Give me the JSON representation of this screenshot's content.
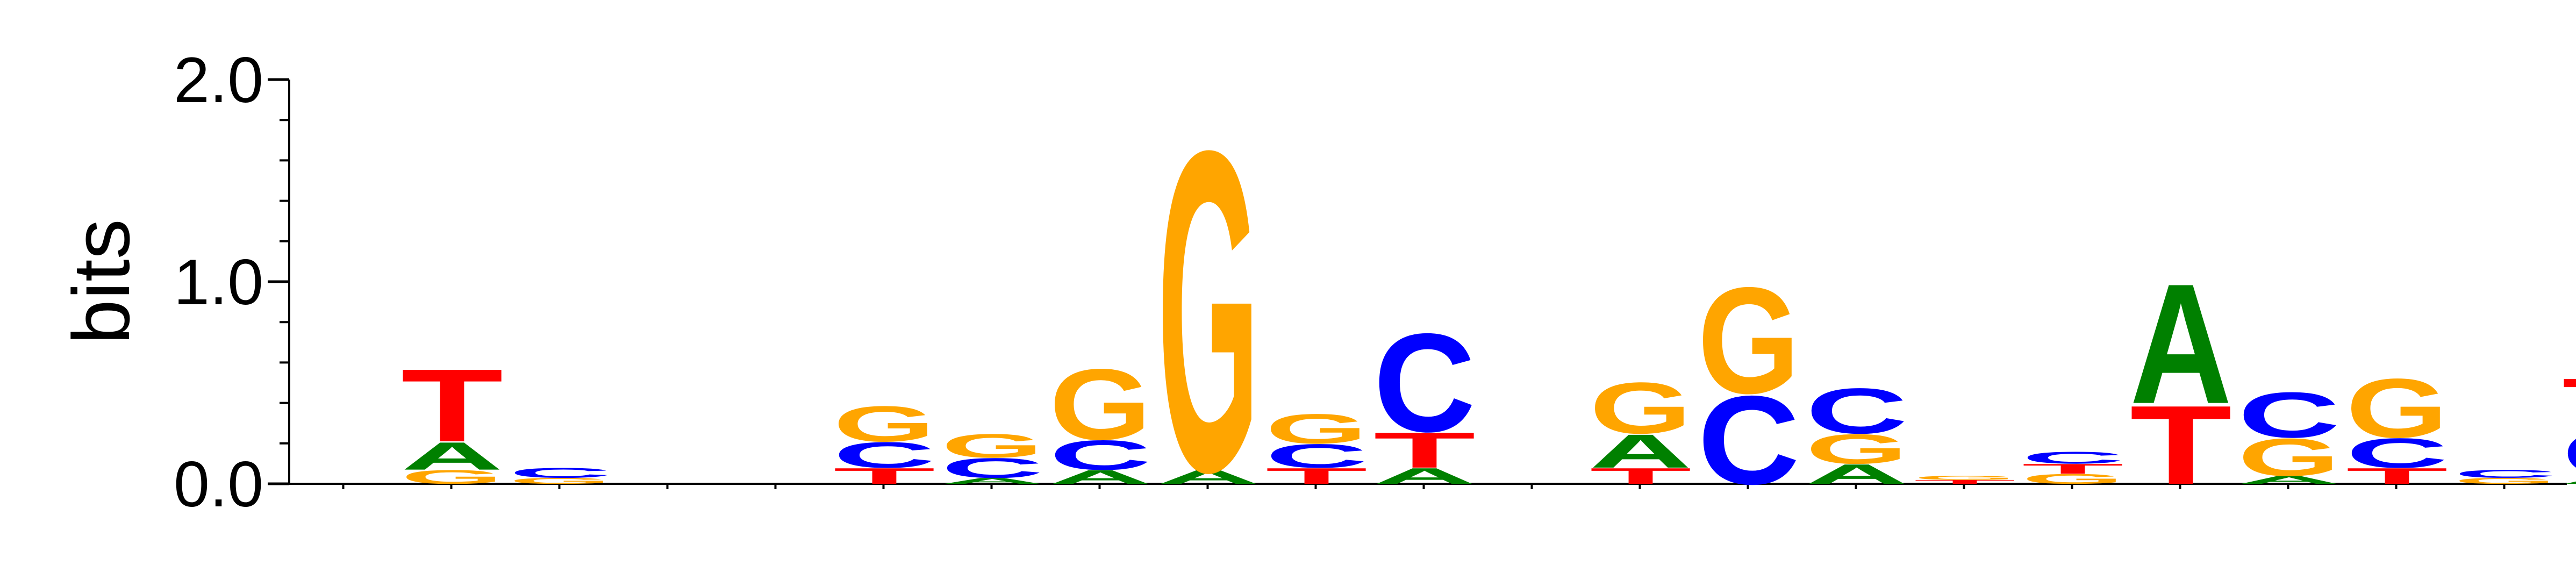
{
  "chart_data": {
    "type": "sequence-logo",
    "title": "",
    "xlabel": "",
    "ylabel": "bits",
    "ylim": [
      0,
      2.0
    ],
    "y_ticks": [
      0.0,
      1.0,
      2.0
    ],
    "y_tick_labels": [
      "0.0",
      "1.0",
      "2.0"
    ],
    "y_minor_step": 0.2,
    "x_tick_count": 21,
    "colors": {
      "A": "#008000",
      "C": "#0000ff",
      "G": "#ffa500",
      "T": "#ff0000"
    },
    "positions": [
      {
        "pos": 1,
        "letters": []
      },
      {
        "pos": 2,
        "letters": [
          [
            "G",
            0.07
          ],
          [
            "A",
            0.14
          ],
          [
            "T",
            0.37
          ]
        ]
      },
      {
        "pos": 3,
        "letters": [
          [
            "G",
            0.03
          ],
          [
            "C",
            0.05
          ]
        ]
      },
      {
        "pos": 4,
        "letters": []
      },
      {
        "pos": 5,
        "letters": []
      },
      {
        "pos": 6,
        "letters": [
          [
            "T",
            0.08
          ],
          [
            "C",
            0.13
          ],
          [
            "G",
            0.18
          ]
        ]
      },
      {
        "pos": 7,
        "letters": [
          [
            "A",
            0.03
          ],
          [
            "C",
            0.1
          ],
          [
            "G",
            0.12
          ]
        ]
      },
      {
        "pos": 8,
        "letters": [
          [
            "A",
            0.07
          ],
          [
            "C",
            0.15
          ],
          [
            "G",
            0.36
          ]
        ]
      },
      {
        "pos": 9,
        "letters": [
          [
            "A",
            0.07
          ],
          [
            "G",
            1.63
          ]
        ]
      },
      {
        "pos": 10,
        "letters": [
          [
            "T",
            0.08
          ],
          [
            "C",
            0.12
          ],
          [
            "G",
            0.15
          ]
        ]
      },
      {
        "pos": 11,
        "letters": [
          [
            "A",
            0.08
          ],
          [
            "T",
            0.18
          ],
          [
            "C",
            0.5
          ]
        ]
      },
      {
        "pos": 12,
        "letters": []
      },
      {
        "pos": 13,
        "letters": [
          [
            "T",
            0.08
          ],
          [
            "A",
            0.17
          ],
          [
            "G",
            0.26
          ]
        ]
      },
      {
        "pos": 14,
        "letters": [
          [
            "C",
            0.45
          ],
          [
            "G",
            0.54
          ]
        ]
      },
      {
        "pos": 15,
        "letters": [
          [
            "A",
            0.1
          ],
          [
            "G",
            0.15
          ],
          [
            "C",
            0.23
          ]
        ]
      },
      {
        "pos": 16,
        "letters": [
          [
            "T",
            0.02
          ],
          [
            "G",
            0.02
          ]
        ]
      },
      {
        "pos": 17,
        "letters": [
          [
            "G",
            0.05
          ],
          [
            "T",
            0.05
          ],
          [
            "C",
            0.06
          ]
        ]
      },
      {
        "pos": 18,
        "letters": [
          [
            "T",
            0.4
          ],
          [
            "A",
            0.61
          ]
        ]
      },
      {
        "pos": 19,
        "letters": [
          [
            "A",
            0.04
          ],
          [
            "G",
            0.19
          ],
          [
            "C",
            0.23
          ]
        ]
      },
      {
        "pos": 20,
        "letters": [
          [
            "T",
            0.08
          ],
          [
            "C",
            0.15
          ],
          [
            "G",
            0.3
          ]
        ]
      },
      {
        "pos": 21,
        "letters": [
          [
            "G",
            0.03
          ],
          [
            "C",
            0.04
          ]
        ]
      },
      {
        "pos": 22,
        "letters": [
          [
            "A",
            0.04
          ],
          [
            "C",
            0.23
          ],
          [
            "T",
            0.26
          ]
        ]
      }
    ]
  }
}
